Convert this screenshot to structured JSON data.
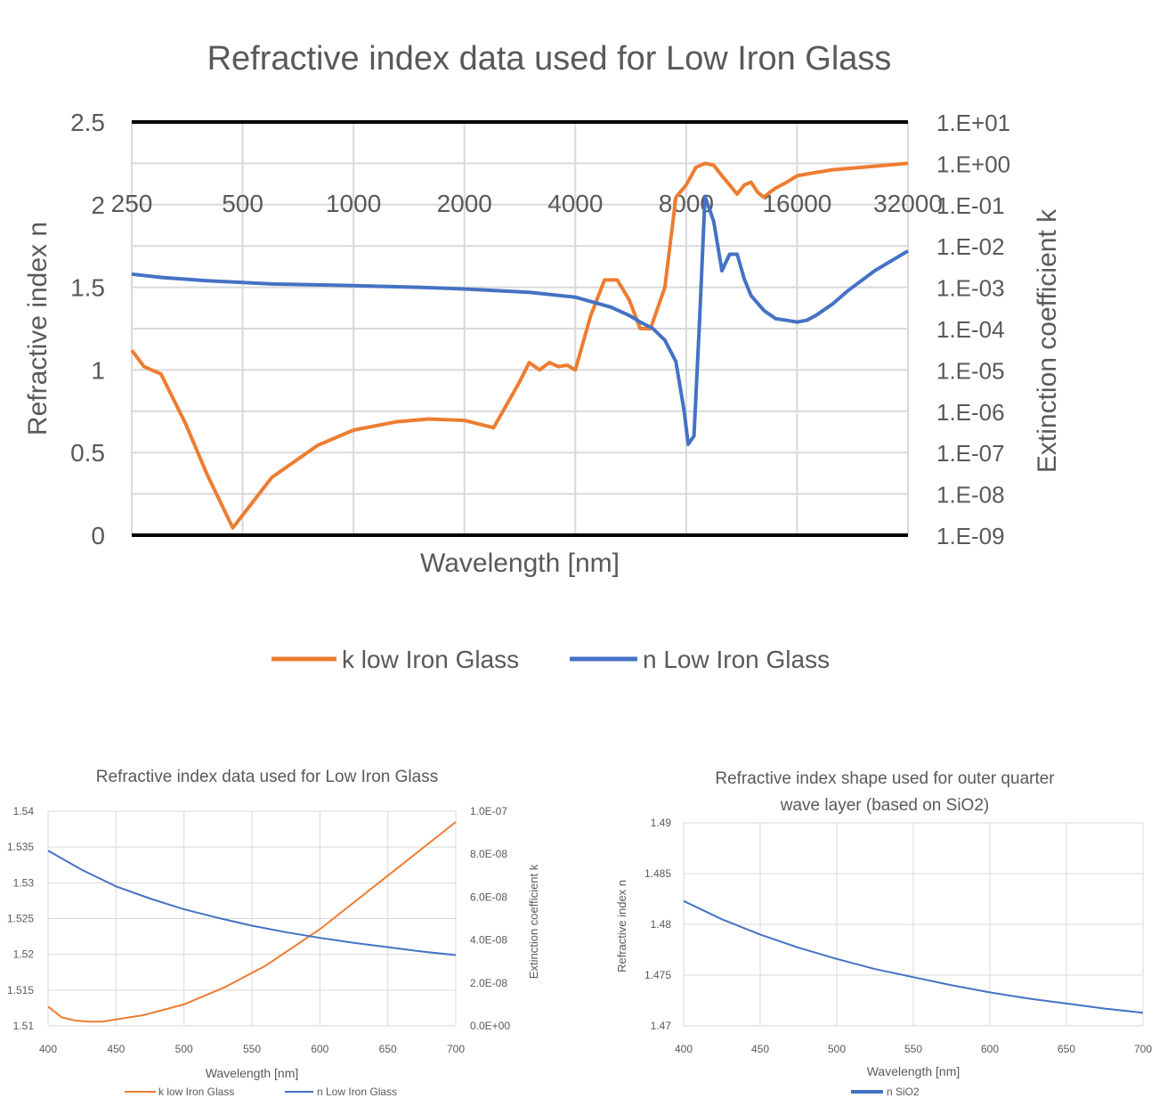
{
  "chart_data": [
    {
      "type": "line",
      "title": "Refractive index data used for Low Iron Glass",
      "xlabel": "Wavelength [nm]",
      "ylabel": "Refractive index n",
      "y2label": "Extinction coefficient k",
      "x_scale": "log2",
      "x_ticks": [
        "250",
        "500",
        "1000",
        "2000",
        "4000",
        "8000",
        "16000",
        "32000"
      ],
      "x_range": [
        250,
        32000
      ],
      "y_ticks": [
        "0",
        "0.5",
        "1",
        "1.5",
        "2",
        "2.5"
      ],
      "y_range": [
        0,
        2.5
      ],
      "y2_ticks": [
        "1.E-09",
        "1.E-08",
        "1.E-07",
        "1.E-06",
        "1.E-05",
        "1.E-04",
        "1.E-03",
        "1.E-02",
        "1.E-01",
        "1.E+00",
        "1.E+01"
      ],
      "y2_scale": "log10",
      "y2_range_exp": [
        -9,
        1
      ],
      "legend": "bottom",
      "grid": true,
      "series": [
        {
          "name": "k low Iron Glass",
          "axis": "right",
          "color": "#ED7D31",
          "x": [
            250,
            270,
            300,
            350,
            400,
            470,
            600,
            800,
            1000,
            1300,
            1600,
            2000,
            2400,
            2800,
            3000,
            3200,
            3400,
            3600,
            3800,
            4000,
            4400,
            4800,
            5200,
            5600,
            6000,
            6400,
            7000,
            7500,
            8000,
            8500,
            9000,
            9500,
            10000,
            10500,
            11000,
            11500,
            12000,
            12500,
            13000,
            13500,
            14000,
            15000,
            16000,
            18000,
            20000,
            24000,
            28000,
            32000
          ],
          "k": [
            3e-05,
            1.2e-05,
            8e-06,
            5e-07,
            3e-08,
            1.5e-09,
            2.5e-08,
            1.5e-07,
            3.5e-07,
            5.5e-07,
            6.5e-07,
            6e-07,
            4e-07,
            4.5e-06,
            1.5e-05,
            1e-05,
            1.5e-05,
            1.2e-05,
            1.3e-05,
            1e-05,
            0.0002,
            0.0015,
            0.0015,
            0.0005,
            0.0001,
            0.0001,
            0.001,
            0.15,
            0.3,
            0.8,
            1.0,
            0.9,
            0.5,
            0.3,
            0.18,
            0.3,
            0.35,
            0.2,
            0.15,
            0.2,
            0.25,
            0.35,
            0.5,
            0.6,
            0.7,
            0.8,
            0.9,
            1.0
          ]
        },
        {
          "name": "n Low Iron Glass",
          "axis": "left",
          "color": "#4472C4",
          "x": [
            250,
            300,
            400,
            600,
            1000,
            1500,
            2000,
            3000,
            4000,
            5000,
            5600,
            6000,
            6500,
            7000,
            7500,
            7900,
            8100,
            8400,
            8700,
            9000,
            9500,
            10000,
            10500,
            11000,
            11500,
            12000,
            13000,
            14000,
            15000,
            16000,
            17000,
            18000,
            20000,
            22000,
            26000,
            32000
          ],
          "n": [
            1.58,
            1.56,
            1.54,
            1.52,
            1.51,
            1.5,
            1.49,
            1.47,
            1.44,
            1.38,
            1.33,
            1.29,
            1.25,
            1.18,
            1.05,
            0.75,
            0.55,
            0.6,
            1.3,
            2.05,
            1.9,
            1.6,
            1.7,
            1.7,
            1.55,
            1.45,
            1.36,
            1.31,
            1.3,
            1.29,
            1.3,
            1.33,
            1.4,
            1.48,
            1.6,
            1.72
          ]
        }
      ]
    },
    {
      "type": "line",
      "title": "Refractive index data used for Low Iron Glass",
      "xlabel": "Wavelength [nm]",
      "ylabel": "",
      "y2label": "Extinction coefficient k",
      "x_range": [
        400,
        700
      ],
      "x_ticks": [
        "400",
        "450",
        "500",
        "550",
        "600",
        "650",
        "700"
      ],
      "y_range": [
        1.51,
        1.54
      ],
      "y_ticks": [
        "1.51",
        "1.515",
        "1.52",
        "1.525",
        "1.53",
        "1.535",
        "1.54"
      ],
      "y2_range": [
        0,
        1e-07
      ],
      "y2_ticks": [
        "0.0E+00",
        "2.0E-08",
        "4.0E-08",
        "6.0E-08",
        "8.0E-08",
        "1.0E-07"
      ],
      "legend": "bottom",
      "grid": true,
      "series": [
        {
          "name": "k low Iron Glass",
          "axis": "right",
          "color": "#ED7D31",
          "x": [
            400,
            410,
            420,
            430,
            440,
            450,
            470,
            500,
            530,
            560,
            600,
            650,
            700
          ],
          "k": [
            9e-09,
            4e-09,
            2.5e-09,
            2e-09,
            2e-09,
            3e-09,
            5e-09,
            1e-08,
            1.8e-08,
            2.8e-08,
            4.5e-08,
            7e-08,
            9.5e-08
          ]
        },
        {
          "name": "n Low Iron Glass",
          "axis": "left",
          "color": "#4472C4",
          "x": [
            400,
            425,
            450,
            475,
            500,
            525,
            550,
            575,
            600,
            625,
            650,
            675,
            700
          ],
          "n": [
            1.5345,
            1.5318,
            1.5295,
            1.5278,
            1.5263,
            1.5251,
            1.524,
            1.5231,
            1.5223,
            1.5216,
            1.521,
            1.5204,
            1.5199
          ]
        }
      ]
    },
    {
      "type": "line",
      "title_line1": "Refractive index shape used for outer quarter",
      "title_line2": "wave layer (based on SiO2)",
      "xlabel": "Wavelength [nm]",
      "ylabel": "Refractive index n",
      "x_range": [
        400,
        700
      ],
      "x_ticks": [
        "400",
        "450",
        "500",
        "550",
        "600",
        "650",
        "700"
      ],
      "y_range": [
        1.47,
        1.49
      ],
      "y_ticks": [
        "1.47",
        "1.475",
        "1.48",
        "1.485",
        "1.49"
      ],
      "legend": "bottom",
      "grid": true,
      "series": [
        {
          "name": "n SiO2",
          "color": "#4472C4",
          "x": [
            400,
            425,
            450,
            475,
            500,
            525,
            550,
            575,
            600,
            625,
            650,
            675,
            700
          ],
          "n": [
            1.4823,
            1.4805,
            1.479,
            1.4777,
            1.4766,
            1.4756,
            1.4748,
            1.474,
            1.4733,
            1.4727,
            1.4722,
            1.4717,
            1.4713
          ]
        }
      ]
    }
  ]
}
